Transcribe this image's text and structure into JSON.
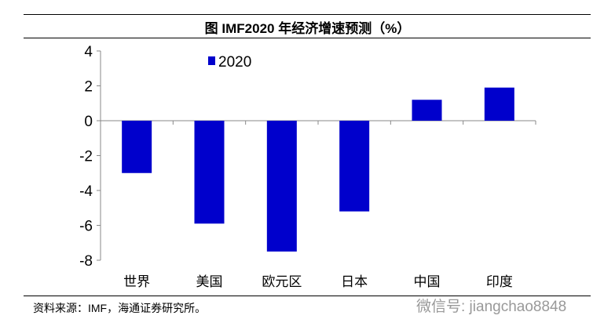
{
  "title": "图  IMF2020 年经济增速预测（%）",
  "source": "资料来源：IMF，海通证券研究所。",
  "watermark": "微信号: jiangchao8848",
  "chart_data": {
    "type": "bar",
    "title": "图  IMF2020 年经济增速预测（%）",
    "categories": [
      "世界",
      "美国",
      "欧元区",
      "日本",
      "中国",
      "印度"
    ],
    "series": [
      {
        "name": "2020",
        "values": [
          -3.0,
          -5.9,
          -7.5,
          -5.2,
          1.2,
          1.9
        ],
        "color": "#0000CC"
      }
    ],
    "ylim": [
      -8,
      4
    ],
    "yticks": [
      4,
      2,
      0,
      -2,
      -4,
      -6,
      -8
    ],
    "grid": false,
    "legend": "top-left"
  }
}
